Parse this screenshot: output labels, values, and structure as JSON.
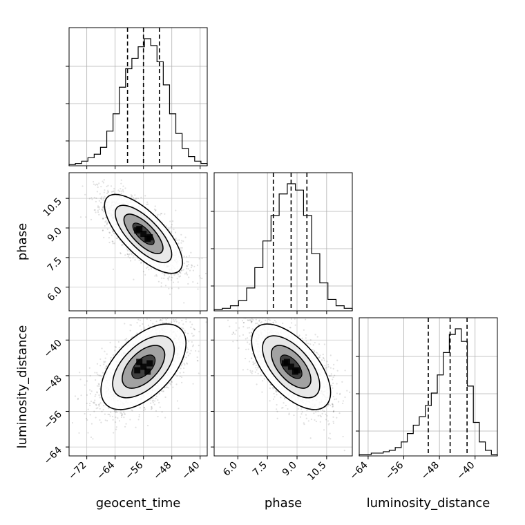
{
  "chart_data": {
    "type": "corner",
    "parameters": [
      "geocent_time",
      "phase",
      "luminosity_distance"
    ],
    "ranges": {
      "geocent_time": [
        -77,
        -38
      ],
      "phase": [
        4.8,
        11.8
      ],
      "luminosity_distance": [
        -66,
        -35
      ]
    },
    "ticks": {
      "geocent_time": {
        "values": [
          -72,
          -64,
          -56,
          -48,
          -40
        ],
        "labels": [
          "−72",
          "−64",
          "−56",
          "−48",
          "−40"
        ]
      },
      "phase": {
        "values": [
          6.0,
          7.5,
          9.0,
          10.5
        ],
        "labels": [
          "6.0",
          "7.5",
          "9.0",
          "10.5"
        ]
      },
      "luminosity_distance": {
        "values": [
          -64,
          -56,
          -48,
          -40
        ],
        "labels": [
          "−64",
          "−56",
          "−48",
          "−40"
        ]
      }
    },
    "histograms": {
      "geocent_time": {
        "edges_range": [
          -77,
          -38
        ],
        "counts": [
          1,
          2,
          4,
          7,
          10,
          16,
          30,
          45,
          68,
          84,
          93,
          103,
          110,
          104,
          90,
          70,
          45,
          28,
          15,
          8,
          4,
          2
        ],
        "quantiles": [
          -60.5,
          -56,
          -51.5
        ]
      },
      "phase": {
        "edges_range": [
          4.8,
          11.8
        ],
        "counts": [
          1,
          2,
          4,
          8,
          18,
          34,
          55,
          75,
          92,
          100,
          95,
          75,
          45,
          22,
          9,
          4,
          2
        ],
        "quantiles": [
          7.8,
          8.7,
          9.5
        ]
      },
      "luminosity_distance": {
        "edges_range": [
          -66,
          -35
        ],
        "counts": [
          1,
          1,
          2,
          2,
          3,
          4,
          6,
          10,
          16,
          22,
          28,
          36,
          45,
          58,
          74,
          87,
          91,
          82,
          50,
          24,
          10,
          4,
          1
        ],
        "quantiles": [
          -50.5,
          -45.6,
          -41.8
        ]
      }
    },
    "scatter_2d": [
      {
        "x": "geocent_time",
        "y": "phase",
        "mean": [
          -56,
          8.7
        ],
        "std": [
          5.5,
          1.0
        ],
        "rho": -0.72
      },
      {
        "x": "geocent_time",
        "y": "luminosity_distance",
        "mean": [
          -56,
          -46
        ],
        "std": [
          6.0,
          4.8
        ],
        "rho": 0.55
      },
      {
        "x": "phase",
        "y": "luminosity_distance",
        "mean": [
          8.7,
          -46
        ],
        "std": [
          1.0,
          4.8
        ],
        "rho": -0.6
      }
    ],
    "grid": true
  }
}
